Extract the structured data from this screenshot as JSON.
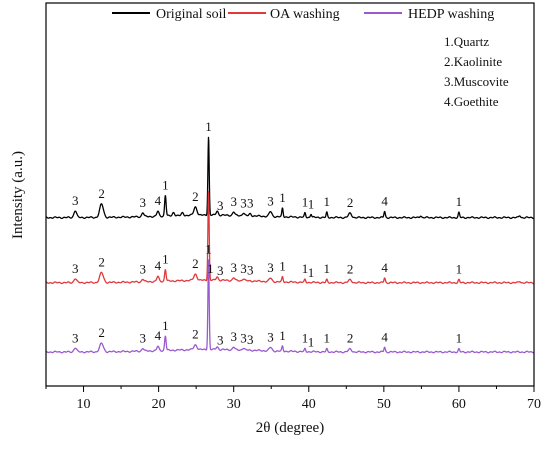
{
  "chart_data": {
    "type": "line",
    "xlabel": "2θ (degree)",
    "ylabel": "Intensity (a.u.)",
    "xlim": [
      5,
      70
    ],
    "x_ticks": [
      "10",
      "20",
      "30",
      "40",
      "50",
      "60",
      "70"
    ],
    "y_ticks_visible": false,
    "grid": false,
    "legend_position": "top",
    "phase_key": [
      "1.Quartz",
      "2.Kaolinite",
      "3.Muscovite",
      "4.Goethite"
    ],
    "series": [
      {
        "name": "Original soil",
        "color": "#000000",
        "baseline": 1.92,
        "peaks": [
          {
            "x": 8.9,
            "h": 0.1,
            "w": 0.25
          },
          {
            "x": 12.4,
            "h": 0.19,
            "w": 0.35
          },
          {
            "x": 17.9,
            "h": 0.06,
            "w": 0.2
          },
          {
            "x": 19.9,
            "h": 0.07,
            "w": 0.2
          },
          {
            "x": 20.9,
            "h": 0.3,
            "w": 0.14
          },
          {
            "x": 22.0,
            "h": 0.05,
            "w": 0.2
          },
          {
            "x": 23.2,
            "h": 0.04,
            "w": 0.2
          },
          {
            "x": 24.9,
            "h": 0.12,
            "w": 0.3
          },
          {
            "x": 26.65,
            "h": 1.12,
            "w": 0.12
          },
          {
            "x": 27.8,
            "h": 0.06,
            "w": 0.2
          },
          {
            "x": 30.0,
            "h": 0.05,
            "w": 0.2
          },
          {
            "x": 31.3,
            "h": 0.04,
            "w": 0.2
          },
          {
            "x": 32.2,
            "h": 0.03,
            "w": 0.2
          },
          {
            "x": 34.9,
            "h": 0.07,
            "w": 0.25
          },
          {
            "x": 36.5,
            "h": 0.12,
            "w": 0.12
          },
          {
            "x": 39.5,
            "h": 0.06,
            "w": 0.12
          },
          {
            "x": 40.3,
            "h": 0.05,
            "w": 0.12
          },
          {
            "x": 42.4,
            "h": 0.07,
            "w": 0.12
          },
          {
            "x": 45.5,
            "h": 0.06,
            "w": 0.3
          },
          {
            "x": 50.1,
            "h": 0.09,
            "w": 0.13
          },
          {
            "x": 54.9,
            "h": 0.03,
            "w": 0.15
          },
          {
            "x": 60.0,
            "h": 0.07,
            "w": 0.13
          },
          {
            "x": 68.1,
            "h": 0.03,
            "w": 0.15
          }
        ],
        "peak_labels": [
          {
            "x": 8.9,
            "text": "3"
          },
          {
            "x": 12.4,
            "text": "2"
          },
          {
            "x": 17.9,
            "text": "3"
          },
          {
            "x": 19.9,
            "text": "4"
          },
          {
            "x": 20.9,
            "text": "1"
          },
          {
            "x": 24.9,
            "text": "2"
          },
          {
            "x": 26.65,
            "text": "1"
          },
          {
            "x": 28.2,
            "text": "3"
          },
          {
            "x": 30.0,
            "text": "3"
          },
          {
            "x": 31.3,
            "text": "3"
          },
          {
            "x": 32.2,
            "text": "3"
          },
          {
            "x": 34.9,
            "text": "3"
          },
          {
            "x": 36.5,
            "text": "1"
          },
          {
            "x": 39.5,
            "text": "1"
          },
          {
            "x": 40.3,
            "text": "1"
          },
          {
            "x": 42.4,
            "text": "1"
          },
          {
            "x": 45.5,
            "text": "2"
          },
          {
            "x": 50.1,
            "text": "4"
          },
          {
            "x": 60.0,
            "text": "1"
          }
        ]
      },
      {
        "name": "OA washing",
        "color": "#e0393c",
        "baseline": 0.99,
        "peaks": [
          {
            "x": 8.9,
            "h": 0.06,
            "w": 0.25
          },
          {
            "x": 12.4,
            "h": 0.14,
            "w": 0.35
          },
          {
            "x": 17.9,
            "h": 0.04,
            "w": 0.2
          },
          {
            "x": 19.9,
            "h": 0.07,
            "w": 0.2
          },
          {
            "x": 20.9,
            "h": 0.17,
            "w": 0.14
          },
          {
            "x": 24.9,
            "h": 0.09,
            "w": 0.3
          },
          {
            "x": 26.65,
            "h": 1.28,
            "w": 0.12
          },
          {
            "x": 27.8,
            "h": 0.05,
            "w": 0.2
          },
          {
            "x": 30.0,
            "h": 0.04,
            "w": 0.2
          },
          {
            "x": 31.3,
            "h": 0.03,
            "w": 0.2
          },
          {
            "x": 34.9,
            "h": 0.05,
            "w": 0.25
          },
          {
            "x": 36.5,
            "h": 0.07,
            "w": 0.12
          },
          {
            "x": 39.5,
            "h": 0.04,
            "w": 0.12
          },
          {
            "x": 42.4,
            "h": 0.04,
            "w": 0.12
          },
          {
            "x": 45.5,
            "h": 0.04,
            "w": 0.3
          },
          {
            "x": 50.1,
            "h": 0.07,
            "w": 0.13
          },
          {
            "x": 60.0,
            "h": 0.04,
            "w": 0.13
          },
          {
            "x": 68.1,
            "h": 0.02,
            "w": 0.15
          }
        ],
        "peak_labels": [
          {
            "x": 8.9,
            "text": "3"
          },
          {
            "x": 12.4,
            "text": "2"
          },
          {
            "x": 17.9,
            "text": "3"
          },
          {
            "x": 19.9,
            "text": "4"
          },
          {
            "x": 20.9,
            "text": "1"
          },
          {
            "x": 24.9,
            "text": "2"
          },
          {
            "x": 26.9,
            "text": "1"
          },
          {
            "x": 28.2,
            "text": "3"
          },
          {
            "x": 30.0,
            "text": "3"
          },
          {
            "x": 31.3,
            "text": "3"
          },
          {
            "x": 32.2,
            "text": "3"
          },
          {
            "x": 34.9,
            "text": "3"
          },
          {
            "x": 36.5,
            "text": "1"
          },
          {
            "x": 39.5,
            "text": "1"
          },
          {
            "x": 40.3,
            "text": "1"
          },
          {
            "x": 42.4,
            "text": "1"
          },
          {
            "x": 45.5,
            "text": "2"
          },
          {
            "x": 50.1,
            "text": "4"
          },
          {
            "x": 60.0,
            "text": "1"
          }
        ]
      },
      {
        "name": "HEDP washing",
        "color": "#9b59d0",
        "baseline": 0.0,
        "peaks": [
          {
            "x": 8.9,
            "h": 0.06,
            "w": 0.25
          },
          {
            "x": 12.4,
            "h": 0.12,
            "w": 0.35
          },
          {
            "x": 17.9,
            "h": 0.04,
            "w": 0.2
          },
          {
            "x": 19.9,
            "h": 0.06,
            "w": 0.2
          },
          {
            "x": 20.9,
            "h": 0.21,
            "w": 0.14
          },
          {
            "x": 24.9,
            "h": 0.07,
            "w": 0.3
          },
          {
            "x": 26.65,
            "h": 1.29,
            "w": 0.12
          },
          {
            "x": 27.8,
            "h": 0.04,
            "w": 0.2
          },
          {
            "x": 30.0,
            "h": 0.04,
            "w": 0.2
          },
          {
            "x": 31.3,
            "h": 0.03,
            "w": 0.2
          },
          {
            "x": 34.9,
            "h": 0.05,
            "w": 0.25
          },
          {
            "x": 36.5,
            "h": 0.07,
            "w": 0.12
          },
          {
            "x": 39.5,
            "h": 0.04,
            "w": 0.12
          },
          {
            "x": 42.4,
            "h": 0.04,
            "w": 0.12
          },
          {
            "x": 45.5,
            "h": 0.04,
            "w": 0.3
          },
          {
            "x": 50.1,
            "h": 0.07,
            "w": 0.13
          },
          {
            "x": 60.0,
            "h": 0.04,
            "w": 0.13
          }
        ],
        "peak_labels": [
          {
            "x": 8.9,
            "text": "3"
          },
          {
            "x": 12.4,
            "text": "2"
          },
          {
            "x": 17.9,
            "text": "3"
          },
          {
            "x": 19.9,
            "text": "4"
          },
          {
            "x": 20.9,
            "text": "1"
          },
          {
            "x": 24.9,
            "text": "2"
          },
          {
            "x": 26.65,
            "text": "1"
          },
          {
            "x": 28.2,
            "text": "3"
          },
          {
            "x": 30.0,
            "text": "3"
          },
          {
            "x": 31.3,
            "text": "3"
          },
          {
            "x": 32.2,
            "text": "3"
          },
          {
            "x": 34.9,
            "text": "3"
          },
          {
            "x": 36.5,
            "text": "1"
          },
          {
            "x": 39.5,
            "text": "1"
          },
          {
            "x": 40.3,
            "text": "1"
          },
          {
            "x": 42.4,
            "text": "1"
          },
          {
            "x": 45.5,
            "text": "2"
          },
          {
            "x": 50.1,
            "text": "4"
          },
          {
            "x": 60.0,
            "text": "1"
          }
        ]
      }
    ]
  }
}
